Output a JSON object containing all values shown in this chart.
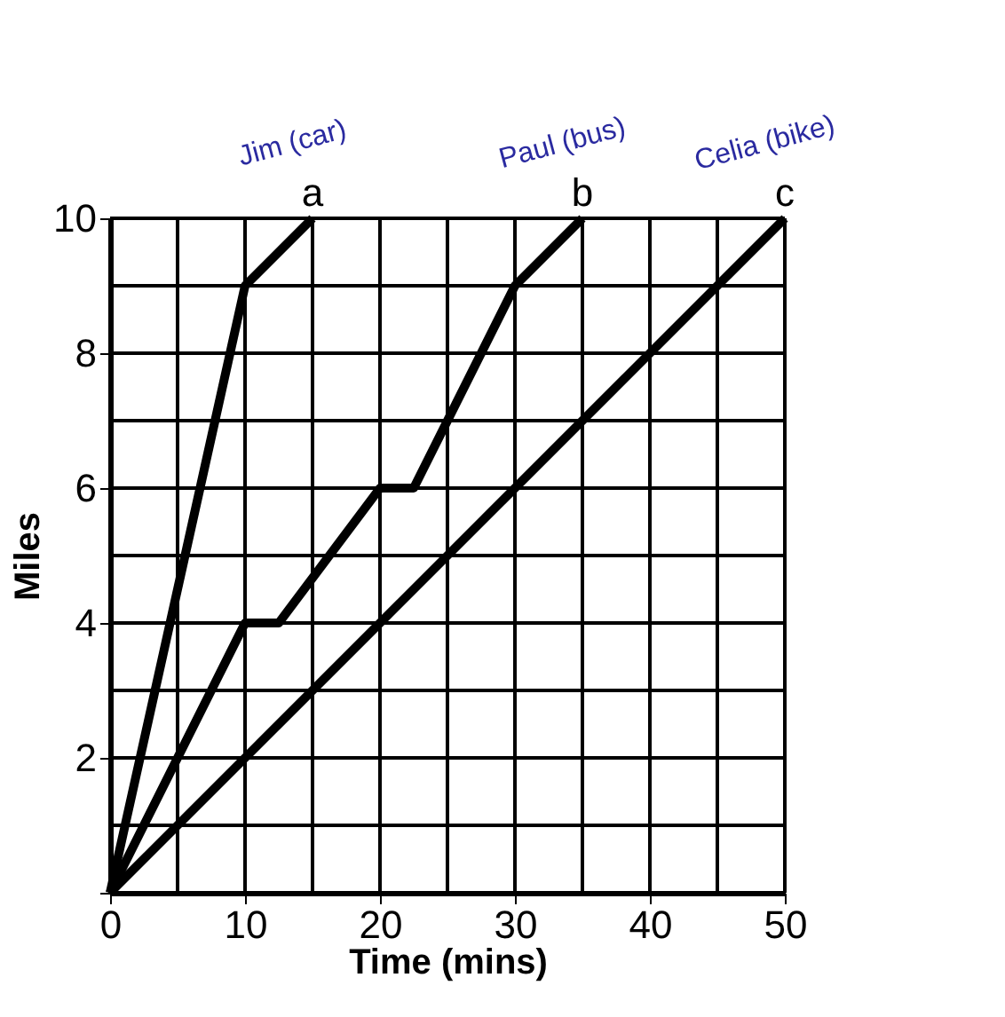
{
  "chart_data": {
    "type": "line",
    "xlabel": "Time (mins)",
    "ylabel": "Miles",
    "xlim": [
      0,
      50
    ],
    "ylim": [
      0,
      10
    ],
    "xticks": [
      0,
      {
        "value": 5,
        "label": null
      },
      10,
      {
        "value": 15,
        "label": null
      },
      20,
      {
        "value": 25,
        "label": null
      },
      30,
      {
        "value": 35,
        "label": null
      },
      40,
      {
        "value": 45,
        "label": null
      },
      50
    ],
    "yticks": [
      {
        "value": 0,
        "label": null
      },
      {
        "value": 1,
        "label": null
      },
      2,
      {
        "value": 3,
        "label": null
      },
      4,
      {
        "value": 5,
        "label": null
      },
      6,
      {
        "value": 7,
        "label": null
      },
      8,
      {
        "value": 9,
        "label": null
      },
      10
    ],
    "grid": true,
    "marker": "none",
    "line_style": "solid",
    "legend": false,
    "series": [
      {
        "name": "a",
        "color": "#000000",
        "x": [
          0,
          10,
          15
        ],
        "values": [
          0,
          9,
          10
        ]
      },
      {
        "name": "b",
        "color": "#000000",
        "x": [
          0,
          10,
          12.5,
          20,
          22.5,
          30,
          35
        ],
        "values": [
          0,
          4,
          4,
          6,
          6,
          9,
          10
        ]
      },
      {
        "name": "c",
        "color": "#000000",
        "x": [
          0,
          50
        ],
        "values": [
          0,
          10
        ]
      }
    ],
    "annotations": [
      {
        "text": "Jim (car)",
        "x": 15,
        "y": 10
      },
      {
        "text": "Paul (bus)",
        "x": 35,
        "y": 10
      },
      {
        "text": "Celia (bike)",
        "x": 50,
        "y": 10
      }
    ]
  }
}
